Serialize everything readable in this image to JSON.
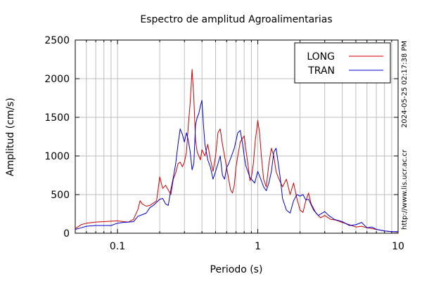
{
  "chart_data": {
    "type": "line",
    "title": "Espectro de amplitud Agroalimentarias",
    "xlabel": "Periodo (s)",
    "ylabel": "Amplitud (cm/s)",
    "x_scale": "log",
    "xlim": [
      0.05,
      10
    ],
    "ylim": [
      0,
      2500
    ],
    "grid": true,
    "legend_position": "top-right",
    "x_ticks": [
      {
        "value": 0.1,
        "label": "0.1"
      },
      {
        "value": 1,
        "label": "1"
      },
      {
        "value": 10,
        "label": "10"
      }
    ],
    "y_ticks": [
      0,
      500,
      1000,
      1500,
      2000,
      2500
    ],
    "series": [
      {
        "name": "LONG",
        "color": "#cc0000",
        "points": [
          [
            0.05,
            60
          ],
          [
            0.055,
            110
          ],
          [
            0.06,
            130
          ],
          [
            0.07,
            145
          ],
          [
            0.08,
            150
          ],
          [
            0.09,
            155
          ],
          [
            0.1,
            160
          ],
          [
            0.11,
            150
          ],
          [
            0.12,
            145
          ],
          [
            0.13,
            180
          ],
          [
            0.14,
            310
          ],
          [
            0.145,
            420
          ],
          [
            0.15,
            380
          ],
          [
            0.16,
            350
          ],
          [
            0.17,
            360
          ],
          [
            0.18,
            390
          ],
          [
            0.19,
            420
          ],
          [
            0.2,
            730
          ],
          [
            0.21,
            580
          ],
          [
            0.22,
            620
          ],
          [
            0.23,
            560
          ],
          [
            0.24,
            500
          ],
          [
            0.25,
            700
          ],
          [
            0.26,
            780
          ],
          [
            0.27,
            900
          ],
          [
            0.28,
            920
          ],
          [
            0.29,
            860
          ],
          [
            0.3,
            920
          ],
          [
            0.31,
            1050
          ],
          [
            0.32,
            1400
          ],
          [
            0.33,
            1700
          ],
          [
            0.34,
            2120
          ],
          [
            0.35,
            1750
          ],
          [
            0.36,
            1200
          ],
          [
            0.37,
            1050
          ],
          [
            0.38,
            1000
          ],
          [
            0.39,
            950
          ],
          [
            0.4,
            1080
          ],
          [
            0.42,
            1000
          ],
          [
            0.44,
            1150
          ],
          [
            0.46,
            950
          ],
          [
            0.48,
            800
          ],
          [
            0.5,
            1000
          ],
          [
            0.52,
            1300
          ],
          [
            0.54,
            1350
          ],
          [
            0.56,
            1150
          ],
          [
            0.58,
            1000
          ],
          [
            0.6,
            850
          ],
          [
            0.62,
            700
          ],
          [
            0.64,
            560
          ],
          [
            0.66,
            520
          ],
          [
            0.68,
            620
          ],
          [
            0.7,
            860
          ],
          [
            0.72,
            1000
          ],
          [
            0.75,
            1180
          ],
          [
            0.78,
            1230
          ],
          [
            0.8,
            1260
          ],
          [
            0.82,
            1100
          ],
          [
            0.85,
            900
          ],
          [
            0.88,
            680
          ],
          [
            0.9,
            720
          ],
          [
            0.93,
            900
          ],
          [
            0.96,
            1200
          ],
          [
            1.0,
            1460
          ],
          [
            1.03,
            1300
          ],
          [
            1.06,
            1000
          ],
          [
            1.1,
            700
          ],
          [
            1.15,
            600
          ],
          [
            1.2,
            900
          ],
          [
            1.25,
            1100
          ],
          [
            1.3,
            1000
          ],
          [
            1.35,
            800
          ],
          [
            1.4,
            720
          ],
          [
            1.5,
            600
          ],
          [
            1.6,
            700
          ],
          [
            1.7,
            500
          ],
          [
            1.8,
            650
          ],
          [
            1.9,
            450
          ],
          [
            2.0,
            300
          ],
          [
            2.1,
            270
          ],
          [
            2.2,
            420
          ],
          [
            2.3,
            520
          ],
          [
            2.4,
            380
          ],
          [
            2.6,
            260
          ],
          [
            2.8,
            200
          ],
          [
            3.0,
            230
          ],
          [
            3.3,
            180
          ],
          [
            3.6,
            170
          ],
          [
            4.0,
            140
          ],
          [
            4.5,
            110
          ],
          [
            5.0,
            80
          ],
          [
            5.5,
            90
          ],
          [
            6.0,
            70
          ],
          [
            7.0,
            50
          ],
          [
            8.0,
            30
          ],
          [
            9.0,
            20
          ],
          [
            10.0,
            15
          ]
        ]
      },
      {
        "name": "TRAN",
        "color": "#0000cc",
        "points": [
          [
            0.05,
            50
          ],
          [
            0.055,
            70
          ],
          [
            0.06,
            90
          ],
          [
            0.07,
            100
          ],
          [
            0.08,
            100
          ],
          [
            0.09,
            100
          ],
          [
            0.1,
            130
          ],
          [
            0.11,
            140
          ],
          [
            0.12,
            145
          ],
          [
            0.13,
            150
          ],
          [
            0.14,
            220
          ],
          [
            0.15,
            240
          ],
          [
            0.16,
            260
          ],
          [
            0.17,
            330
          ],
          [
            0.18,
            360
          ],
          [
            0.19,
            400
          ],
          [
            0.2,
            440
          ],
          [
            0.21,
            450
          ],
          [
            0.22,
            380
          ],
          [
            0.23,
            360
          ],
          [
            0.24,
            560
          ],
          [
            0.25,
            720
          ],
          [
            0.26,
            900
          ],
          [
            0.27,
            1150
          ],
          [
            0.28,
            1350
          ],
          [
            0.29,
            1280
          ],
          [
            0.3,
            1180
          ],
          [
            0.31,
            1300
          ],
          [
            0.32,
            1200
          ],
          [
            0.33,
            1050
          ],
          [
            0.34,
            820
          ],
          [
            0.35,
            900
          ],
          [
            0.36,
            1400
          ],
          [
            0.37,
            1500
          ],
          [
            0.38,
            1550
          ],
          [
            0.39,
            1650
          ],
          [
            0.4,
            1720
          ],
          [
            0.41,
            1400
          ],
          [
            0.42,
            1150
          ],
          [
            0.44,
            950
          ],
          [
            0.46,
            850
          ],
          [
            0.48,
            700
          ],
          [
            0.5,
            800
          ],
          [
            0.52,
            900
          ],
          [
            0.54,
            1000
          ],
          [
            0.56,
            750
          ],
          [
            0.58,
            700
          ],
          [
            0.6,
            850
          ],
          [
            0.62,
            900
          ],
          [
            0.65,
            1000
          ],
          [
            0.68,
            1100
          ],
          [
            0.7,
            1200
          ],
          [
            0.72,
            1300
          ],
          [
            0.75,
            1330
          ],
          [
            0.78,
            1150
          ],
          [
            0.8,
            1000
          ],
          [
            0.82,
            880
          ],
          [
            0.85,
            800
          ],
          [
            0.88,
            720
          ],
          [
            0.9,
            700
          ],
          [
            0.95,
            650
          ],
          [
            1.0,
            800
          ],
          [
            1.05,
            700
          ],
          [
            1.1,
            600
          ],
          [
            1.15,
            550
          ],
          [
            1.2,
            650
          ],
          [
            1.25,
            800
          ],
          [
            1.3,
            1050
          ],
          [
            1.35,
            1100
          ],
          [
            1.4,
            900
          ],
          [
            1.45,
            700
          ],
          [
            1.5,
            450
          ],
          [
            1.6,
            300
          ],
          [
            1.7,
            260
          ],
          [
            1.8,
            420
          ],
          [
            1.9,
            500
          ],
          [
            2.0,
            480
          ],
          [
            2.1,
            500
          ],
          [
            2.2,
            430
          ],
          [
            2.3,
            440
          ],
          [
            2.5,
            300
          ],
          [
            2.7,
            230
          ],
          [
            3.0,
            280
          ],
          [
            3.2,
            230
          ],
          [
            3.5,
            180
          ],
          [
            4.0,
            150
          ],
          [
            4.5,
            100
          ],
          [
            5.0,
            110
          ],
          [
            5.5,
            140
          ],
          [
            6.0,
            70
          ],
          [
            6.5,
            80
          ],
          [
            7.0,
            50
          ],
          [
            8.0,
            30
          ],
          [
            9.0,
            20
          ],
          [
            10.0,
            20
          ]
        ]
      }
    ],
    "side_text": "http://www.lis.ucr.ac.cr",
    "timestamp": "2024-05-25 02:17:38 PM"
  }
}
